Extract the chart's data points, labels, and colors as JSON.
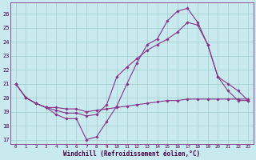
{
  "xlabel": "Windchill (Refroidissement éolien,°C)",
  "background_color": "#c8eaee",
  "grid_color": "#a0cccc",
  "line_color": "#883388",
  "xlim": [
    -0.5,
    23.5
  ],
  "ylim": [
    16.7,
    26.8
  ],
  "yticks": [
    17,
    18,
    19,
    20,
    21,
    22,
    23,
    24,
    25,
    26
  ],
  "xticks": [
    0,
    1,
    2,
    3,
    4,
    5,
    6,
    7,
    8,
    9,
    10,
    11,
    12,
    13,
    14,
    15,
    16,
    17,
    18,
    19,
    20,
    21,
    22,
    23
  ],
  "line1_x": [
    0,
    1,
    2,
    3,
    4,
    5,
    6,
    7,
    8,
    9,
    10,
    11,
    12,
    13,
    14,
    15,
    16,
    17,
    18,
    19,
    20,
    21,
    22,
    23
  ],
  "line1_y": [
    21.0,
    20.0,
    19.6,
    19.3,
    18.8,
    18.5,
    18.5,
    17.0,
    17.2,
    18.3,
    19.4,
    21.0,
    22.5,
    23.8,
    24.2,
    25.5,
    26.2,
    26.4,
    25.4,
    23.8,
    21.5,
    21.0,
    20.5,
    19.8
  ],
  "line2_x": [
    0,
    1,
    2,
    3,
    4,
    5,
    6,
    7,
    8,
    9,
    10,
    11,
    12,
    13,
    14,
    15,
    16,
    17,
    18,
    19,
    20,
    21,
    22,
    23
  ],
  "line2_y": [
    21.0,
    20.0,
    19.6,
    19.3,
    19.1,
    18.9,
    18.9,
    18.7,
    18.8,
    19.5,
    21.5,
    22.2,
    22.8,
    23.4,
    23.8,
    24.2,
    24.7,
    25.4,
    25.2,
    23.8,
    21.5,
    20.5,
    19.8,
    19.8
  ],
  "line3_x": [
    0,
    1,
    2,
    3,
    4,
    5,
    6,
    7,
    8,
    9,
    10,
    11,
    12,
    13,
    14,
    15,
    16,
    17,
    18,
    19,
    20,
    21,
    22,
    23
  ],
  "line3_y": [
    21.0,
    20.0,
    19.6,
    19.3,
    19.3,
    19.2,
    19.2,
    19.0,
    19.1,
    19.2,
    19.3,
    19.4,
    19.5,
    19.6,
    19.7,
    19.8,
    19.8,
    19.9,
    19.9,
    19.9,
    19.9,
    19.9,
    19.9,
    19.9
  ]
}
